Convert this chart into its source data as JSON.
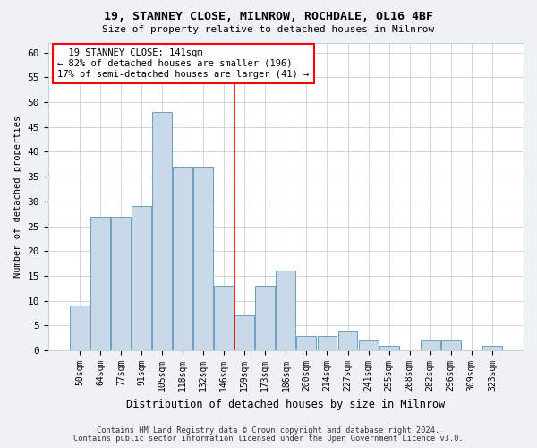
{
  "title1": "19, STANNEY CLOSE, MILNROW, ROCHDALE, OL16 4BF",
  "title2": "Size of property relative to detached houses in Milnrow",
  "xlabel": "Distribution of detached houses by size in Milnrow",
  "ylabel": "Number of detached properties",
  "categories": [
    "50sqm",
    "64sqm",
    "77sqm",
    "91sqm",
    "105sqm",
    "118sqm",
    "132sqm",
    "146sqm",
    "159sqm",
    "173sqm",
    "186sqm",
    "200sqm",
    "214sqm",
    "227sqm",
    "241sqm",
    "255sqm",
    "268sqm",
    "282sqm",
    "296sqm",
    "309sqm",
    "323sqm"
  ],
  "values": [
    9,
    27,
    27,
    29,
    48,
    37,
    37,
    13,
    7,
    13,
    16,
    3,
    3,
    4,
    2,
    1,
    0,
    2,
    2,
    0,
    1
  ],
  "bar_color": "#c9d9e8",
  "bar_edge_color": "#6a9fc0",
  "red_line_x": 7.5,
  "annotation_text": "  19 STANNEY CLOSE: 141sqm  \n← 82% of detached houses are smaller (196)\n17% of semi-detached houses are larger (41) →",
  "annotation_box_color": "white",
  "annotation_box_edge": "red",
  "ylim": [
    0,
    62
  ],
  "yticks": [
    0,
    5,
    10,
    15,
    20,
    25,
    30,
    35,
    40,
    45,
    50,
    55,
    60
  ],
  "footer1": "Contains HM Land Registry data © Crown copyright and database right 2024.",
  "footer2": "Contains public sector information licensed under the Open Government Licence v3.0.",
  "background_color": "#eef2f7",
  "plot_bg_color": "#ffffff",
  "grid_color": "#c8d0da"
}
